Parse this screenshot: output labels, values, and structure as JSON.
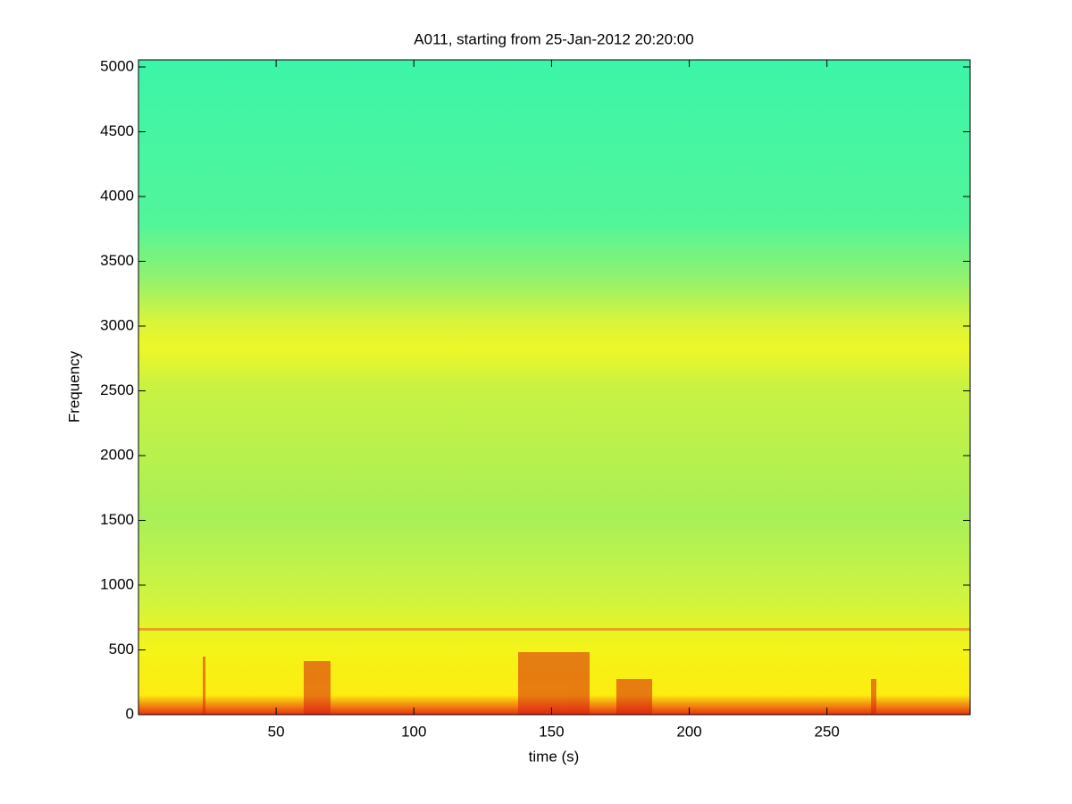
{
  "chart_data": {
    "type": "spectrogram",
    "title": "A011, starting from 25-Jan-2012 20:20:00",
    "xlabel": "time (s)",
    "ylabel": "Frequency",
    "xlim": [
      0,
      302
    ],
    "xticks": [
      50,
      100,
      150,
      200,
      250
    ],
    "ylim": [
      0,
      5055
    ],
    "yticks": [
      0,
      500,
      1000,
      1500,
      2000,
      2500,
      3000,
      3500,
      4000,
      4500,
      5000
    ]
  }
}
